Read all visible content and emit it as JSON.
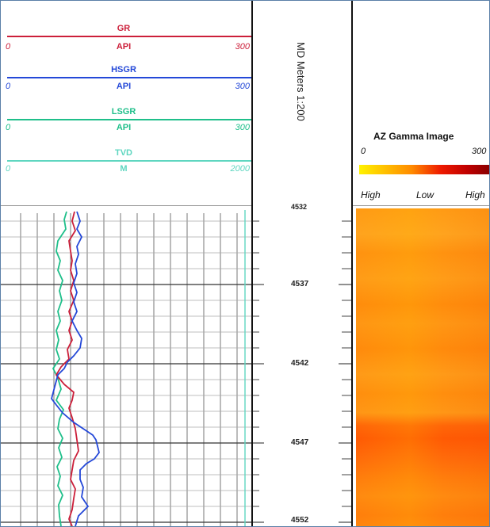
{
  "curves": [
    {
      "name": "GR",
      "unit": "API",
      "min": "0",
      "max": "300",
      "color": "#cc1f3a"
    },
    {
      "name": "HSGR",
      "unit": "API",
      "min": "0",
      "max": "300",
      "color": "#2448d8"
    },
    {
      "name": "LSGR",
      "unit": "API",
      "min": "0",
      "max": "300",
      "color": "#1fbf8a"
    },
    {
      "name": "TVD",
      "unit": "M",
      "min": "0",
      "max": "2000",
      "color": "#5fd6c0"
    }
  ],
  "depth_track": {
    "label": "MD Meters 1:200",
    "top_label": "4532",
    "labels": [
      "4537",
      "4542",
      "4547",
      "4552"
    ]
  },
  "image_track": {
    "title": "AZ Gamma Image",
    "scale_min": "0",
    "scale_max": "300",
    "orientation": [
      "High",
      "Low",
      "High"
    ],
    "colors": [
      "#ffee00",
      "#ff9900",
      "#e82000",
      "#8b0000"
    ]
  }
}
